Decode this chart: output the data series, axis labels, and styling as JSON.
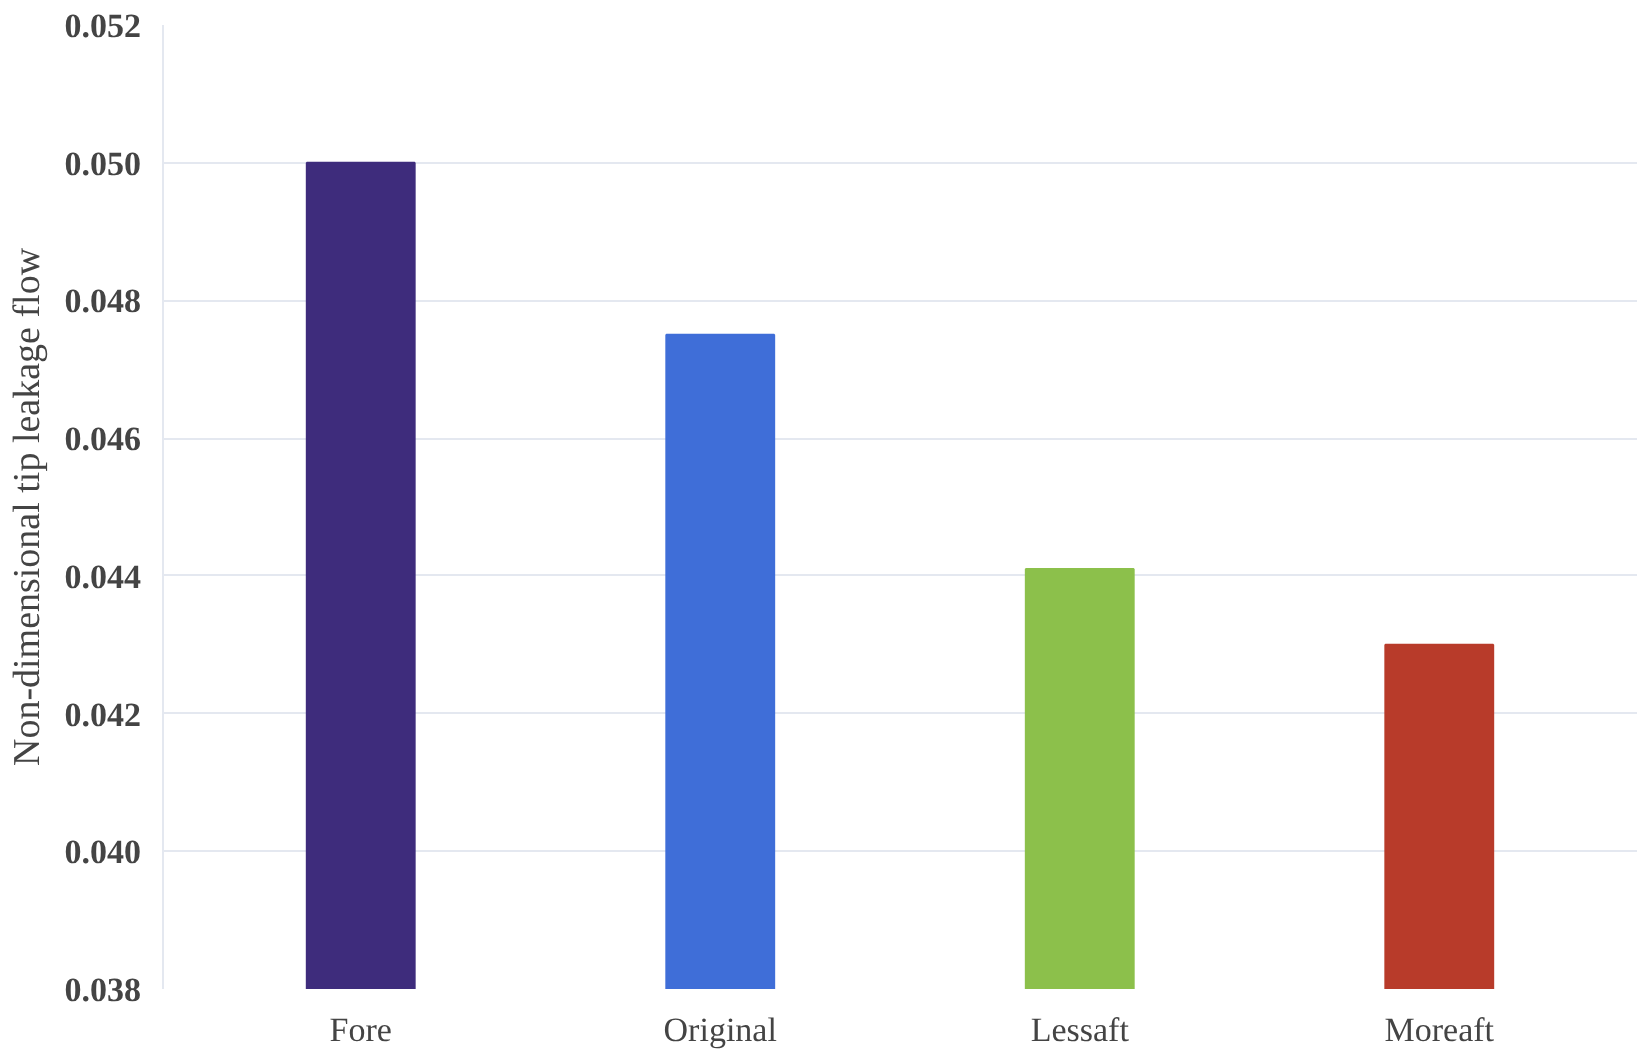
{
  "chart_data": {
    "type": "bar",
    "ylabel": "Non-dimensional tip leakage flow",
    "categories": [
      "Fore",
      "Original",
      "Lessaft",
      "Moreaft"
    ],
    "values": [
      0.05,
      0.0475,
      0.0441,
      0.043
    ],
    "colors": [
      "#3e2c7c",
      "#3f6ed8",
      "#8cc04b",
      "#b83b2a"
    ],
    "ylim": [
      0.038,
      0.052
    ],
    "yticks": [
      0.038,
      {
        "value": 0.04,
        "label": "0.040"
      },
      0.042,
      0.044,
      0.046,
      0.048,
      {
        "value": 0.05,
        "label": "0.050"
      },
      0.052
    ],
    "grid": "y"
  }
}
